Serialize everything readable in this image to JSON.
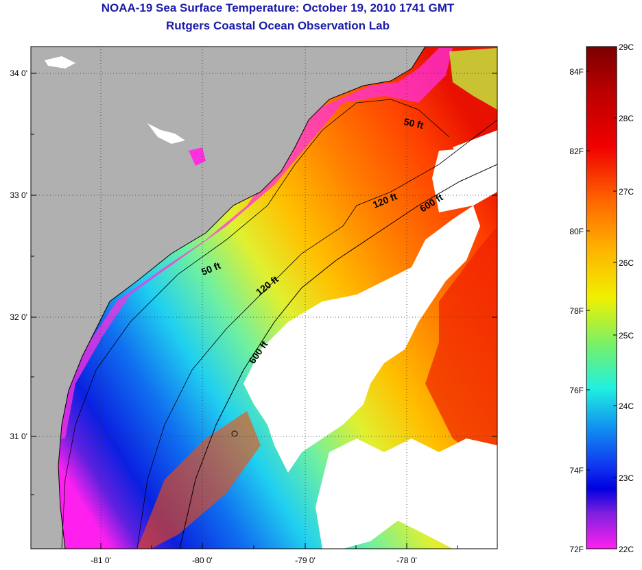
{
  "title": "NOAA-19 Sea Surface Temperature:  October 19, 2010 1741 GMT",
  "subtitle": "Rutgers Coastal Ocean Observation Lab",
  "lat_ticks": [
    "34 0'",
    "33 0'",
    "32 0'",
    "31 0'"
  ],
  "lon_ticks": [
    "-81 0'",
    "-80 0'",
    "-79 0'",
    "-78 0'"
  ],
  "contour_labels": [
    "50 ft",
    "50 ft",
    "120 ft",
    "120 ft",
    "600 ft",
    "600 ft"
  ],
  "colorbar": {
    "celsius": [
      "29C",
      "28C",
      "27C",
      "26C",
      "25C",
      "24C",
      "23C",
      "22C"
    ],
    "fahrenheit": [
      "84F",
      "82F",
      "80F",
      "78F",
      "76F",
      "74F",
      "72F"
    ],
    "colors": [
      "#7a0000",
      "#e00000",
      "#ff5a00",
      "#ffb000",
      "#f0f000",
      "#90f040",
      "#30f0c0",
      "#10b0f0",
      "#1050f0",
      "#0000e0",
      "#8020e0",
      "#ff20f0"
    ]
  },
  "colors": {
    "land": "#b0b0b0",
    "cloud": "#ffffff",
    "title": "#1a1aa8"
  }
}
